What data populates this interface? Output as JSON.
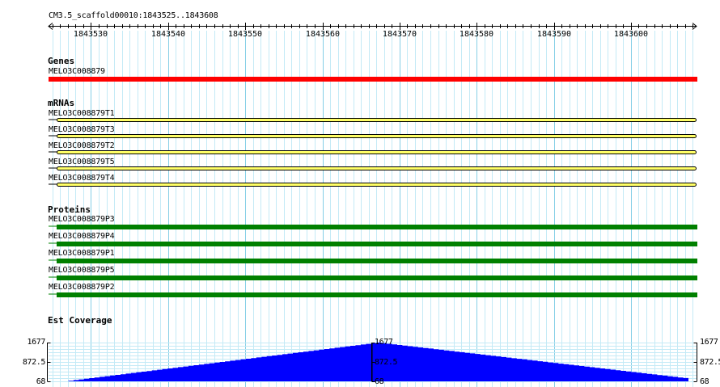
{
  "browser": {
    "region_label": "CM3.5_scaffold00010:1843525..1843608",
    "ruler": {
      "start": 1843525,
      "end": 1843608,
      "tick_labels": [
        "1843530",
        "1843540",
        "1843550",
        "1843560",
        "1843570",
        "1843580",
        "1843590",
        "1843600"
      ]
    },
    "colors": {
      "grid_minor": "#c4eaf6",
      "grid_major": "#86cfe6",
      "gene": "#ff0000",
      "mrna_fill": "#ffff66",
      "mrna_stroke": "#000000",
      "protein": "#008000",
      "coverage": "#0000ff"
    },
    "tracks": {
      "genes": {
        "title": "Genes",
        "features": [
          {
            "name": "MELO3C008879"
          }
        ]
      },
      "mrnas": {
        "title": "mRNAs",
        "features": [
          {
            "name": "MELO3C008879T1"
          },
          {
            "name": "MELO3C008879T3"
          },
          {
            "name": "MELO3C008879T2"
          },
          {
            "name": "MELO3C008879T5"
          },
          {
            "name": "MELO3C008879T4"
          }
        ]
      },
      "proteins": {
        "title": "Proteins",
        "features": [
          {
            "name": "MELO3C008879P3"
          },
          {
            "name": "MELO3C008879P4"
          },
          {
            "name": "MELO3C008879P1"
          },
          {
            "name": "MELO3C008879P5"
          },
          {
            "name": "MELO3C008879P2"
          }
        ]
      },
      "coverage": {
        "title": "Est Coverage",
        "max_label": "1677",
        "mid_label": "872.5",
        "min_label": "68",
        "max": 1677,
        "min": 68,
        "peak_position": 1843567,
        "start_value": 68,
        "end_value": 180
      }
    }
  }
}
